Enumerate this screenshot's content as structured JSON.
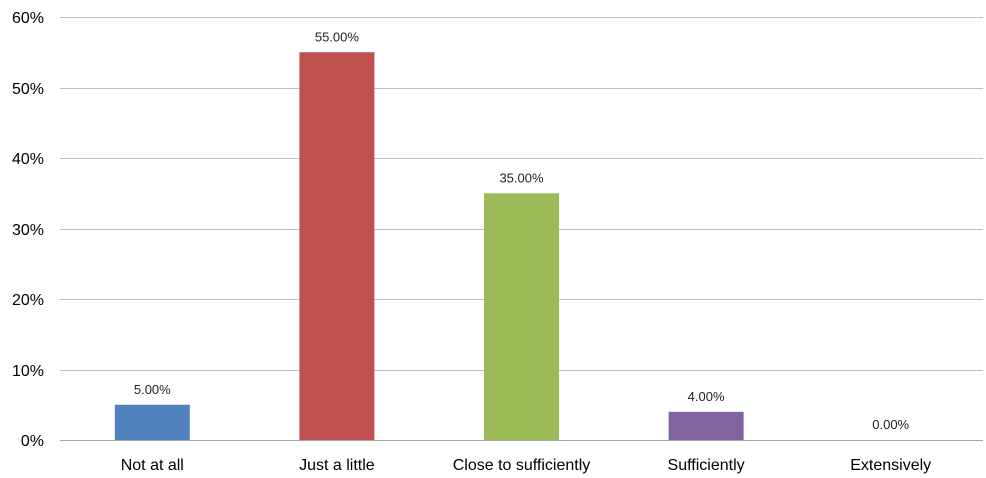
{
  "chart_data": {
    "type": "bar",
    "categories": [
      "Not at all",
      "Just a little",
      "Close to sufficiently",
      "Sufficiently",
      "Extensively"
    ],
    "values": [
      5,
      55,
      35,
      4,
      0
    ],
    "data_labels": [
      "5.00%",
      "55.00%",
      "35.00%",
      "4.00%",
      "0.00%"
    ],
    "colors": [
      "#4F81BD",
      "#C0504D",
      "#9BBB59",
      "#8064A2",
      "#4BACC6"
    ],
    "ylim": [
      0,
      60
    ],
    "yticks": [
      0,
      10,
      20,
      30,
      40,
      50,
      60
    ],
    "ytick_labels": [
      "0%",
      "10%",
      "20%",
      "30%",
      "40%",
      "50%",
      "60%"
    ],
    "grid": true,
    "legend": false
  }
}
